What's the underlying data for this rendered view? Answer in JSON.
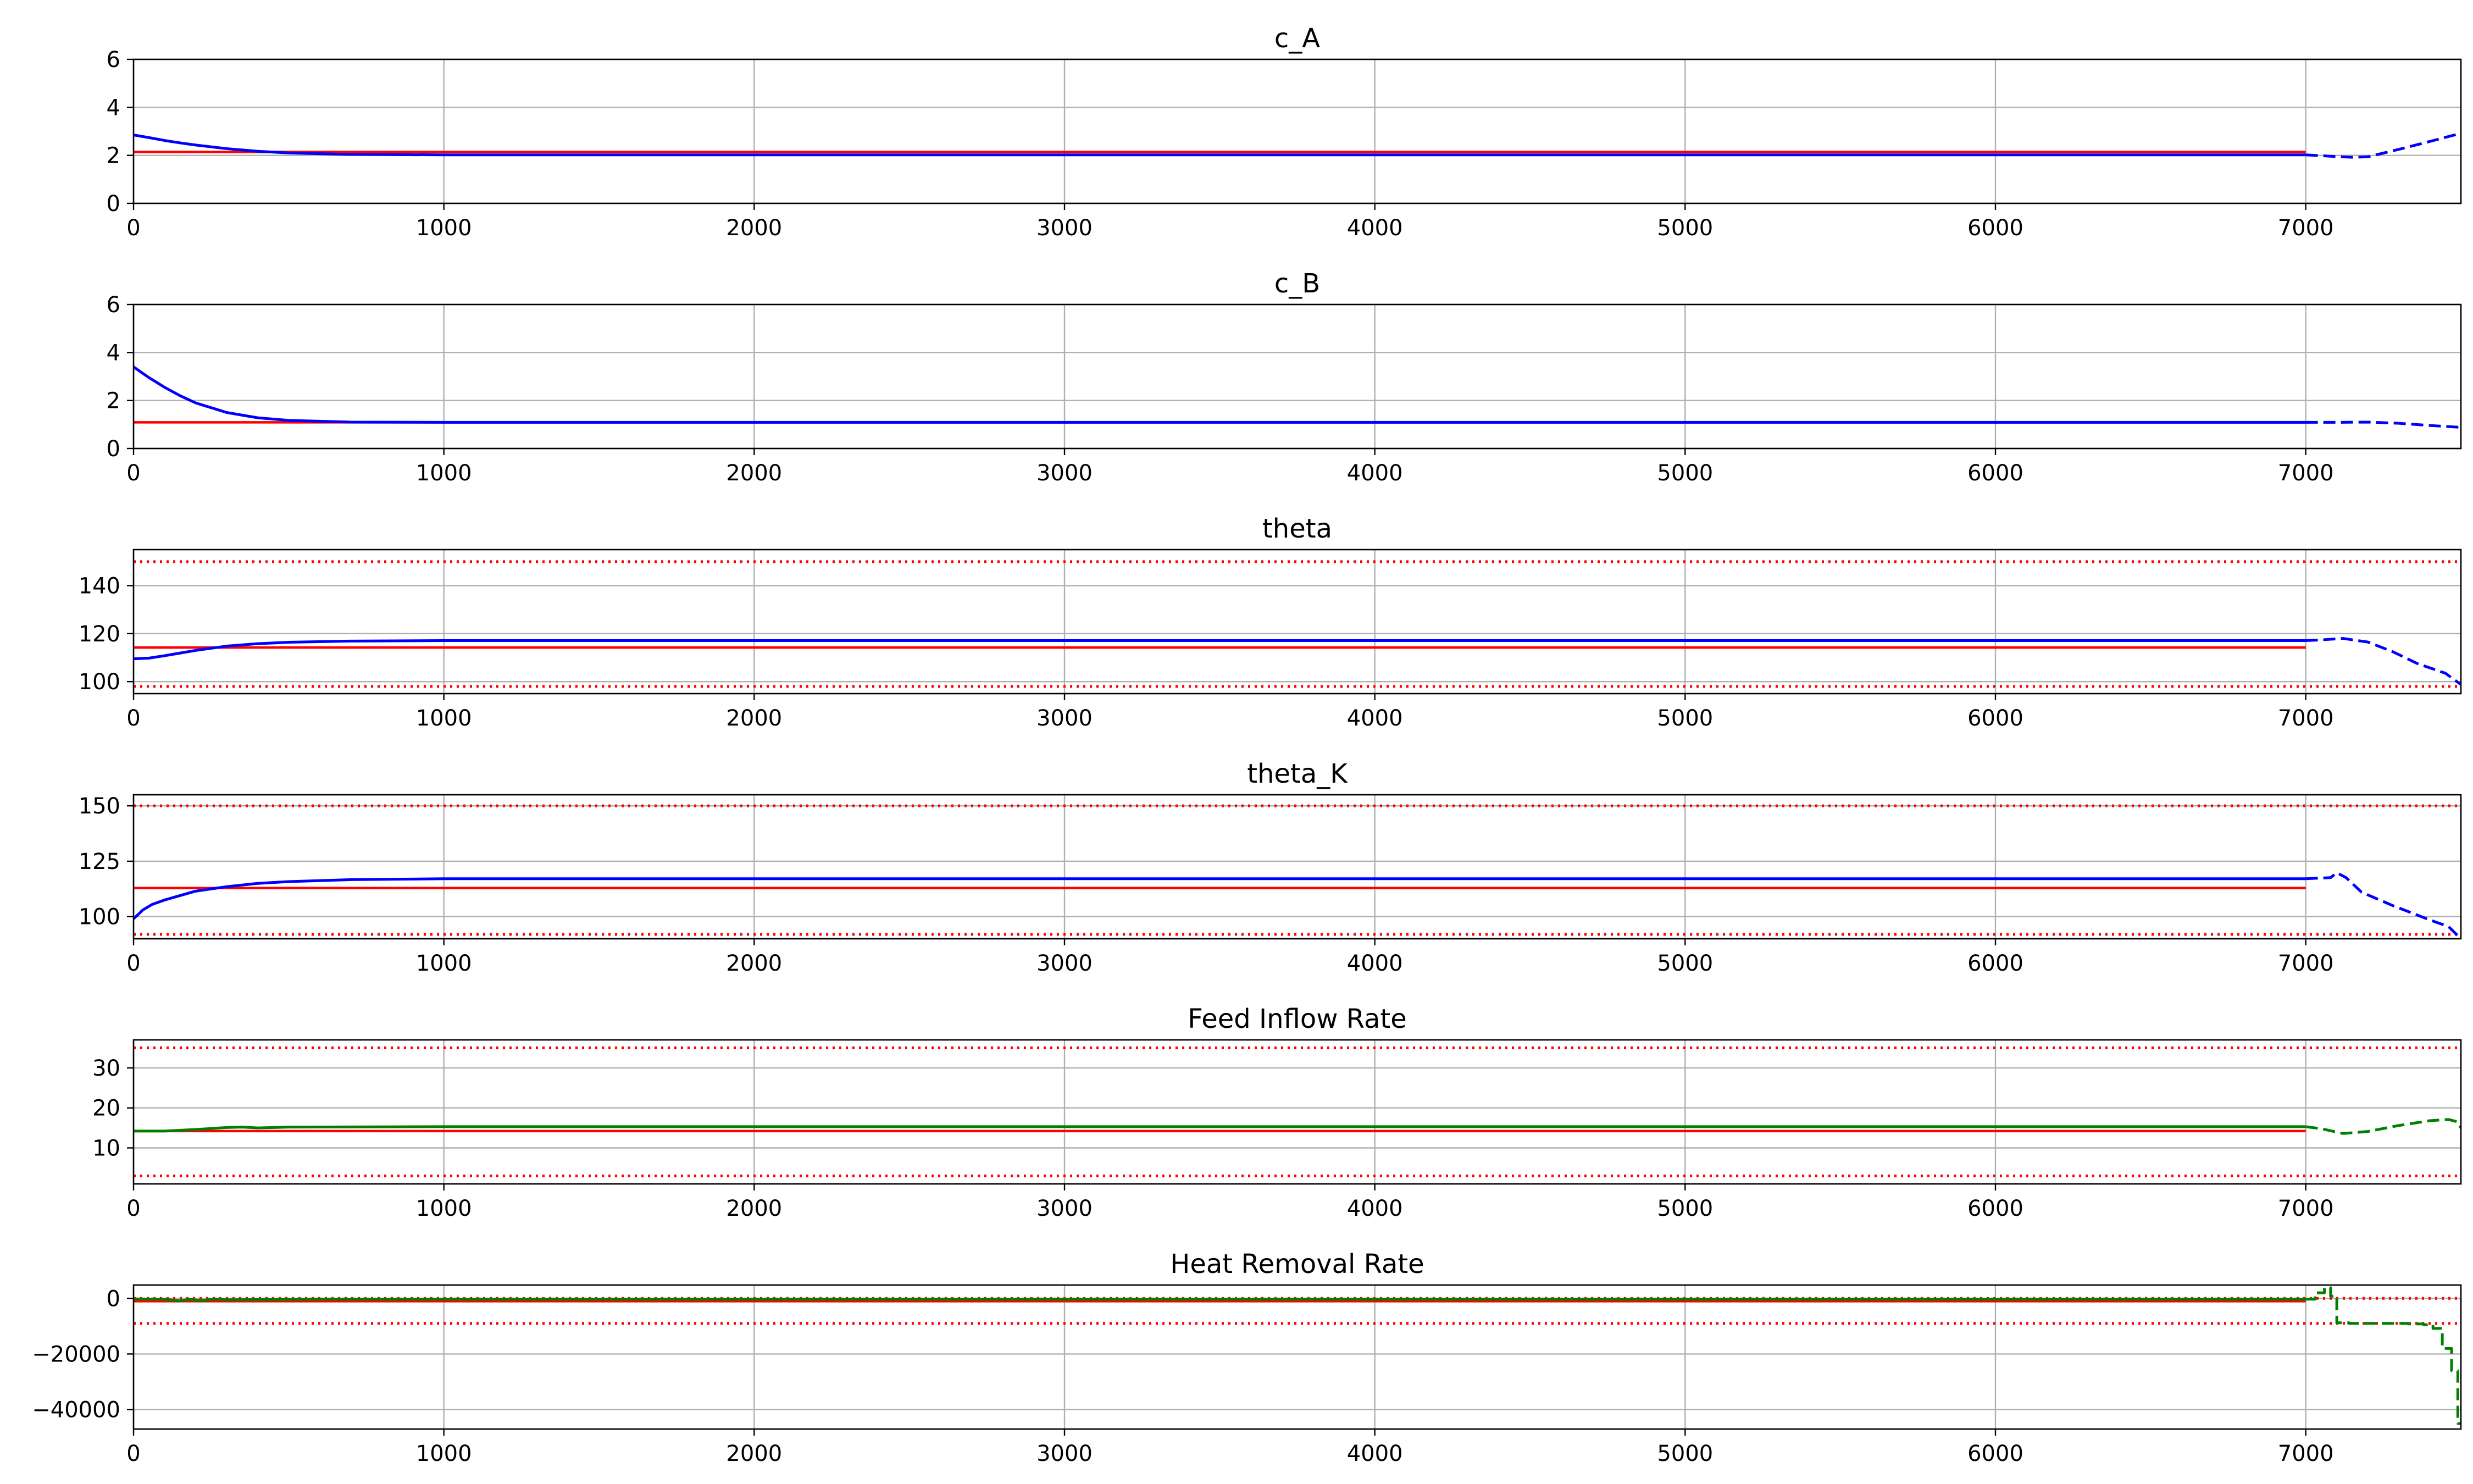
{
  "chart_data": [
    {
      "type": "line",
      "title": "c_A",
      "xlim": [
        0,
        7500
      ],
      "ylim": [
        0,
        6
      ],
      "xticks": [
        0,
        1000,
        2000,
        3000,
        4000,
        5000,
        6000,
        7000
      ],
      "yticks": [
        0,
        2,
        4,
        6
      ],
      "grid": true,
      "hlines": [
        {
          "name": "setpoint",
          "y": 2.14,
          "x0": 0,
          "x1": 7000,
          "color": "#ff0000",
          "style": "solid"
        }
      ],
      "series": [
        {
          "name": "trajectory",
          "color": "#0000ff",
          "style": "solid",
          "points": [
            [
              0,
              2.85
            ],
            [
              50,
              2.74
            ],
            [
              100,
              2.62
            ],
            [
              150,
              2.52
            ],
            [
              200,
              2.43
            ],
            [
              300,
              2.28
            ],
            [
              400,
              2.17
            ],
            [
              500,
              2.1
            ],
            [
              700,
              2.04
            ],
            [
              1000,
              2.02
            ],
            [
              2000,
              2.02
            ],
            [
              4000,
              2.02
            ],
            [
              7000,
              2.02
            ]
          ]
        },
        {
          "name": "prediction",
          "color": "#0000ff",
          "style": "dashed",
          "points": [
            [
              7000,
              2.02
            ],
            [
              7100,
              1.95
            ],
            [
              7150,
              1.92
            ],
            [
              7200,
              1.94
            ],
            [
              7300,
              2.25
            ],
            [
              7400,
              2.58
            ],
            [
              7500,
              2.92
            ]
          ]
        }
      ]
    },
    {
      "type": "line",
      "title": "c_B",
      "xlim": [
        0,
        7500
      ],
      "ylim": [
        0,
        6
      ],
      "xticks": [
        0,
        1000,
        2000,
        3000,
        4000,
        5000,
        6000,
        7000
      ],
      "yticks": [
        0,
        2,
        4,
        6
      ],
      "grid": true,
      "hlines": [
        {
          "name": "setpoint",
          "y": 1.09,
          "x0": 0,
          "x1": 7000,
          "color": "#ff0000",
          "style": "solid"
        }
      ],
      "series": [
        {
          "name": "trajectory",
          "color": "#0000ff",
          "style": "solid",
          "points": [
            [
              0,
              3.4
            ],
            [
              50,
              2.95
            ],
            [
              100,
              2.55
            ],
            [
              150,
              2.2
            ],
            [
              200,
              1.9
            ],
            [
              300,
              1.5
            ],
            [
              400,
              1.28
            ],
            [
              500,
              1.17
            ],
            [
              700,
              1.1
            ],
            [
              1000,
              1.09
            ],
            [
              7000,
              1.09
            ]
          ]
        },
        {
          "name": "prediction",
          "color": "#0000ff",
          "style": "dashed",
          "points": [
            [
              7000,
              1.09
            ],
            [
              7100,
              1.09
            ],
            [
              7200,
              1.1
            ],
            [
              7300,
              1.05
            ],
            [
              7400,
              0.96
            ],
            [
              7500,
              0.88
            ]
          ]
        }
      ]
    },
    {
      "type": "line",
      "title": "theta",
      "xlim": [
        0,
        7500
      ],
      "ylim": [
        95,
        155
      ],
      "xticks": [
        0,
        1000,
        2000,
        3000,
        4000,
        5000,
        6000,
        7000
      ],
      "yticks": [
        100,
        120,
        140
      ],
      "grid": true,
      "hlines": [
        {
          "name": "setpoint",
          "y": 114.2,
          "x0": 0,
          "x1": 7000,
          "color": "#ff0000",
          "style": "solid"
        },
        {
          "name": "upper-bound",
          "y": 150,
          "x0": 0,
          "x1": 7500,
          "color": "#ff0000",
          "style": "dotted"
        },
        {
          "name": "lower-bound",
          "y": 98,
          "x0": 0,
          "x1": 7500,
          "color": "#ff0000",
          "style": "dotted"
        }
      ],
      "series": [
        {
          "name": "trajectory",
          "color": "#0000ff",
          "style": "solid",
          "points": [
            [
              0,
              109.5
            ],
            [
              50,
              109.8
            ],
            [
              100,
              110.8
            ],
            [
              200,
              113
            ],
            [
              300,
              114.8
            ],
            [
              400,
              115.8
            ],
            [
              500,
              116.4
            ],
            [
              700,
              116.9
            ],
            [
              1000,
              117.1
            ],
            [
              7000,
              117.1
            ]
          ]
        },
        {
          "name": "prediction",
          "color": "#0000ff",
          "style": "dashed",
          "points": [
            [
              7000,
              117.1
            ],
            [
              7050,
              117.4
            ],
            [
              7120,
              118
            ],
            [
              7200,
              116.5
            ],
            [
              7280,
              112.5
            ],
            [
              7360,
              107.5
            ],
            [
              7450,
              103.5
            ],
            [
              7500,
              98.8
            ]
          ]
        }
      ]
    },
    {
      "type": "line",
      "title": "theta_K",
      "xlim": [
        0,
        7500
      ],
      "ylim": [
        90,
        155
      ],
      "xticks": [
        0,
        1000,
        2000,
        3000,
        4000,
        5000,
        6000,
        7000
      ],
      "yticks": [
        100,
        125,
        150
      ],
      "grid": true,
      "hlines": [
        {
          "name": "setpoint",
          "y": 112.9,
          "x0": 0,
          "x1": 7000,
          "color": "#ff0000",
          "style": "solid"
        },
        {
          "name": "upper-bound",
          "y": 150,
          "x0": 0,
          "x1": 7500,
          "color": "#ff0000",
          "style": "dotted"
        },
        {
          "name": "lower-bound",
          "y": 92,
          "x0": 0,
          "x1": 7500,
          "color": "#ff0000",
          "style": "dotted"
        }
      ],
      "series": [
        {
          "name": "trajectory",
          "color": "#0000ff",
          "style": "solid",
          "points": [
            [
              0,
              99
            ],
            [
              30,
              103
            ],
            [
              60,
              105.5
            ],
            [
              100,
              107.5
            ],
            [
              200,
              111.5
            ],
            [
              300,
              113.5
            ],
            [
              400,
              115
            ],
            [
              500,
              115.8
            ],
            [
              700,
              116.7
            ],
            [
              1000,
              117.1
            ],
            [
              7000,
              117.1
            ]
          ]
        },
        {
          "name": "prediction",
          "color": "#0000ff",
          "style": "dashed",
          "points": [
            [
              7000,
              117.1
            ],
            [
              7080,
              117.6
            ],
            [
              7100,
              119.8
            ],
            [
              7130,
              117.6
            ],
            [
              7180,
              111
            ],
            [
              7280,
              105
            ],
            [
              7400,
              98.5
            ],
            [
              7460,
              95.5
            ],
            [
              7500,
              90
            ]
          ]
        }
      ]
    },
    {
      "type": "line",
      "title": "Feed Inflow Rate",
      "xlim": [
        0,
        7500
      ],
      "ylim": [
        1,
        37
      ],
      "xticks": [
        0,
        1000,
        2000,
        3000,
        4000,
        5000,
        6000,
        7000
      ],
      "yticks": [
        10,
        20,
        30
      ],
      "grid": true,
      "hlines": [
        {
          "name": "setpoint",
          "y": 14.2,
          "x0": 0,
          "x1": 7000,
          "color": "#ff0000",
          "style": "solid"
        },
        {
          "name": "upper-bound",
          "y": 35,
          "x0": 0,
          "x1": 7500,
          "color": "#ff0000",
          "style": "dotted"
        },
        {
          "name": "lower-bound",
          "y": 3,
          "x0": 0,
          "x1": 7500,
          "color": "#ff0000",
          "style": "dotted"
        }
      ],
      "series": [
        {
          "name": "input",
          "color": "#008000",
          "style": "solid",
          "points": [
            [
              0,
              14.2
            ],
            [
              100,
              14.2
            ],
            [
              200,
              14.6
            ],
            [
              300,
              15.1
            ],
            [
              350,
              15.2
            ],
            [
              400,
              15
            ],
            [
              500,
              15.2
            ],
            [
              1000,
              15.3
            ],
            [
              7000,
              15.3
            ]
          ]
        },
        {
          "name": "prediction",
          "color": "#008000",
          "style": "dashed",
          "points": [
            [
              7000,
              15.3
            ],
            [
              7050,
              14.8
            ],
            [
              7120,
              13.6
            ],
            [
              7200,
              14.1
            ],
            [
              7300,
              15.6
            ],
            [
              7400,
              16.8
            ],
            [
              7460,
              17.1
            ],
            [
              7490,
              16.5
            ],
            [
              7500,
              15
            ]
          ]
        }
      ]
    },
    {
      "type": "line",
      "title": "Heat Removal Rate",
      "xlim": [
        0,
        7500
      ],
      "ylim": [
        -47000,
        4800
      ],
      "xticks": [
        0,
        1000,
        2000,
        3000,
        4000,
        5000,
        6000,
        7000
      ],
      "yticks": [
        0,
        -20000,
        -40000
      ],
      "grid": true,
      "hlines": [
        {
          "name": "setpoint",
          "y": -1000,
          "x0": 0,
          "x1": 7000,
          "color": "#ff0000",
          "style": "solid"
        },
        {
          "name": "upper-bound",
          "y": 0,
          "x0": 0,
          "x1": 7500,
          "color": "#ff0000",
          "style": "dotted"
        },
        {
          "name": "lower-bound",
          "y": -9000,
          "x0": 0,
          "x1": 7500,
          "color": "#ff0000",
          "style": "dotted"
        }
      ],
      "series": [
        {
          "name": "input",
          "color": "#008000",
          "style": "solid",
          "points": [
            [
              0,
              -200
            ],
            [
              100,
              -300
            ],
            [
              150,
              -900
            ],
            [
              180,
              -300
            ],
            [
              220,
              -800
            ],
            [
              260,
              -200
            ],
            [
              300,
              -500
            ],
            [
              600,
              -300
            ],
            [
              1000,
              -300
            ],
            [
              7000,
              -300
            ]
          ]
        },
        {
          "name": "prediction",
          "color": "#008000",
          "style": "dashed",
          "step": true,
          "points": [
            [
              7000,
              -300
            ],
            [
              7030,
              2000
            ],
            [
              7060,
              3800
            ],
            [
              7080,
              800
            ],
            [
              7100,
              -8800
            ],
            [
              7140,
              -9000
            ],
            [
              7250,
              -9000
            ],
            [
              7330,
              -9200
            ],
            [
              7380,
              -9500
            ],
            [
              7410,
              -10800
            ],
            [
              7440,
              -18000
            ],
            [
              7470,
              -26000
            ],
            [
              7490,
              -45000
            ],
            [
              7500,
              -45000
            ]
          ]
        }
      ]
    }
  ]
}
